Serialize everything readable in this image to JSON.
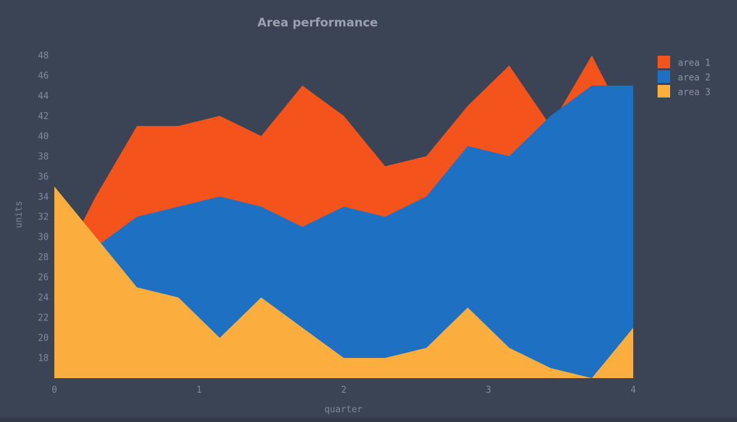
{
  "title": "Area performance",
  "colors": {
    "background": "#3A4454",
    "tick_text": "#828A99",
    "title_text": "#9BA1AE",
    "legend_text": "#8C93A2",
    "bottom_edge": "#323A47",
    "area1": "#F4531B",
    "area2": "#1D70C2",
    "area3": "#FBAE3E"
  },
  "chart_data": {
    "type": "area",
    "title": "Area performance",
    "xlabel": "quarter",
    "ylabel": "units",
    "x": [
      0,
      0.286,
      0.571,
      0.857,
      1.143,
      1.429,
      1.714,
      2,
      2.286,
      2.571,
      2.857,
      3.143,
      3.429,
      3.714,
      4
    ],
    "series": [
      {
        "name": "area 1",
        "color": "#F4531B",
        "values": [
          26,
          34,
          41,
          41,
          42,
          40,
          45,
          42,
          37,
          38,
          43,
          47,
          41,
          48,
          40
        ]
      },
      {
        "name": "area 2",
        "color": "#1D70C2",
        "values": [
          28,
          29,
          32,
          33,
          34,
          33,
          31,
          33,
          32,
          34,
          39,
          38,
          42,
          45,
          45
        ]
      },
      {
        "name": "area 3",
        "color": "#FBAE3E",
        "values": [
          35,
          30,
          25,
          24,
          20,
          24,
          21,
          18,
          18,
          19,
          23,
          19,
          17,
          16,
          21
        ]
      }
    ],
    "xlim": [
      0,
      4
    ],
    "ylim": [
      16,
      49
    ],
    "x_ticks": [
      0,
      1,
      2,
      3,
      4
    ],
    "y_ticks": [
      18,
      20,
      22,
      24,
      26,
      28,
      30,
      32,
      34,
      36,
      38,
      40,
      42,
      44,
      46,
      48
    ],
    "grid": false,
    "axes_lines": false,
    "fill_baseline": 16,
    "legend_position": "top-right",
    "draw_order": [
      "area 1",
      "area 2",
      "area 3"
    ]
  }
}
